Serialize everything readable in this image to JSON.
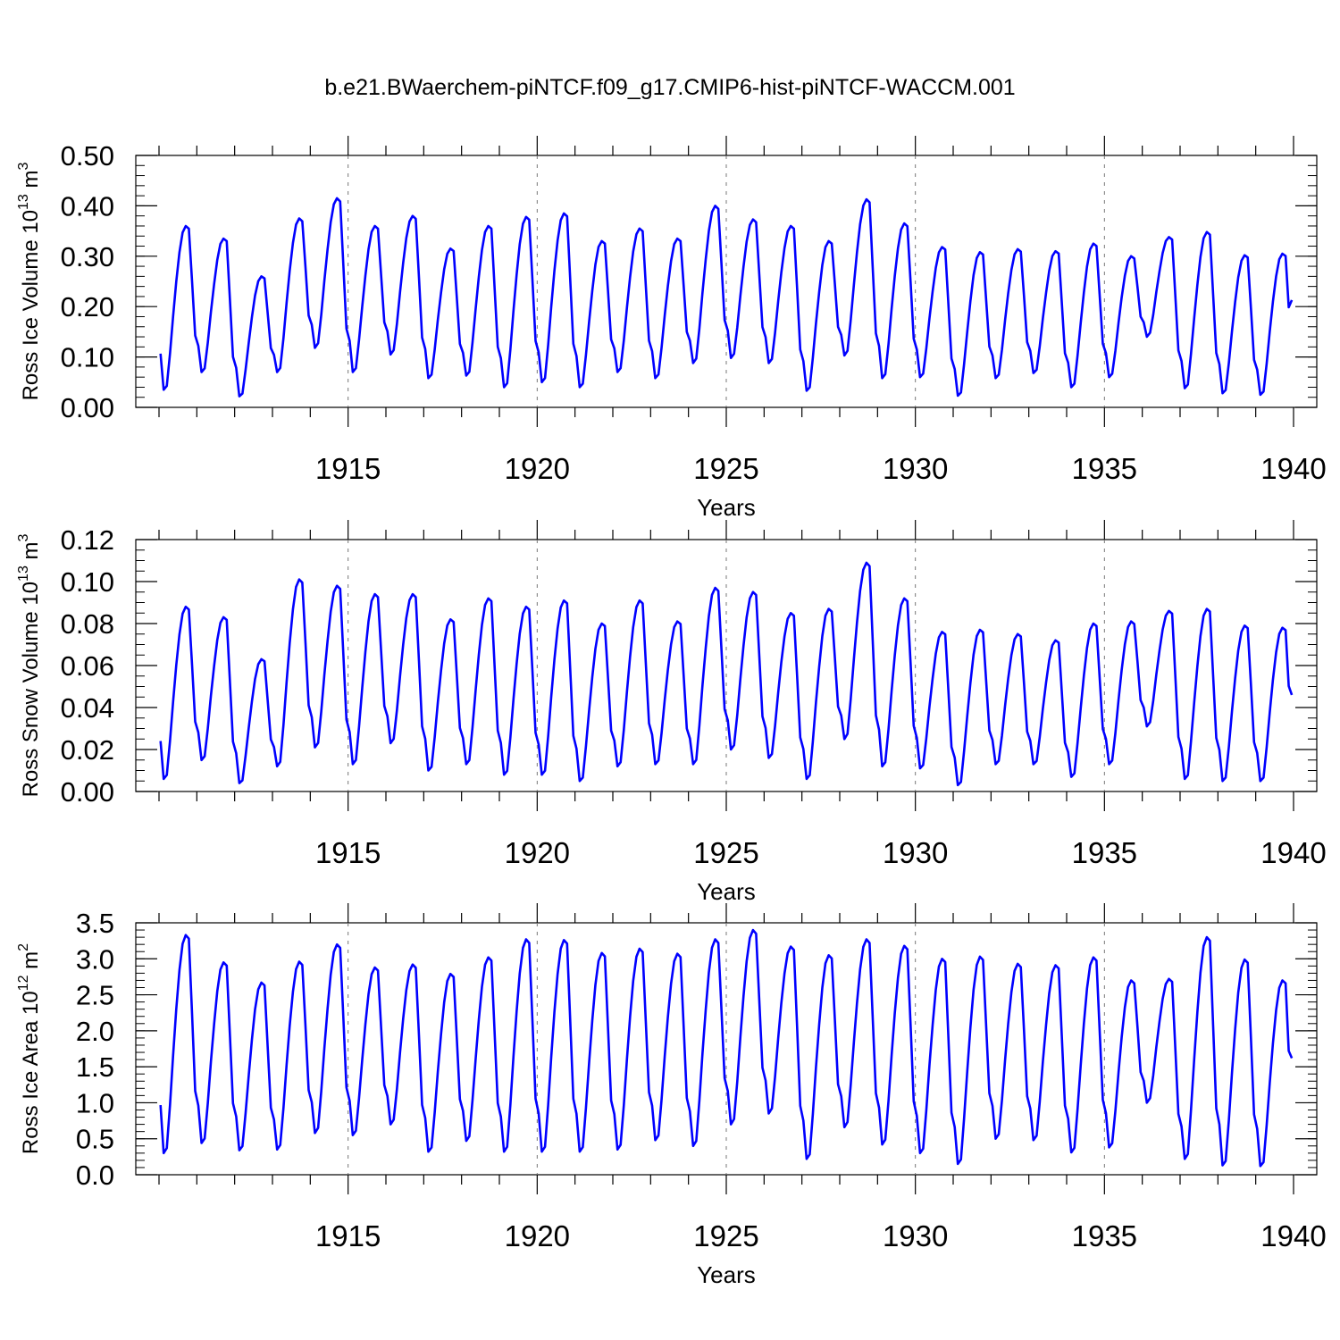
{
  "figure": {
    "title": "b.e21.BWaerchem-piNTCF.f09_g17.CMIP6-hist-piNTCF-WACCM.001"
  },
  "style": {
    "line_color": "#0000ff",
    "axis_color": "#000000",
    "grid_color": "#777777"
  },
  "chart_data": [
    {
      "type": "line",
      "name": "ross-ice-volume",
      "xlabel": "Years",
      "ylabel": "Ross Ice Volume 10",
      "ylabel_exp": "13",
      "ylabel_unit": " m",
      "ylabel_unit_exp": "3",
      "xlim": [
        1910.0,
        1940.0
      ],
      "ylim": [
        0.0,
        0.5
      ],
      "x_ticks": [
        1915,
        1920,
        1925,
        1930,
        1935,
        1940
      ],
      "y_ticks": [
        "0.00",
        "0.10",
        "0.20",
        "0.30",
        "0.40",
        "0.50"
      ],
      "y_tick_values": [
        0.0,
        0.1,
        0.2,
        0.3,
        0.4,
        0.5
      ],
      "y_minor_step": 0.02,
      "grid": "dashed vertical lines at major x ticks",
      "x_start": 1910.04,
      "x_step": 0.08333,
      "peaks": [
        0.36,
        0.335,
        0.26,
        0.375,
        0.415,
        0.36,
        0.38,
        0.315,
        0.36,
        0.378,
        0.385,
        0.33,
        0.355,
        0.335,
        0.4,
        0.373,
        0.36,
        0.33,
        0.413,
        0.365,
        0.318,
        0.308,
        0.314,
        0.31,
        0.325,
        0.3,
        0.338,
        0.348,
        0.302,
        0.305
      ],
      "troughs": [
        0.035,
        0.07,
        0.022,
        0.07,
        0.118,
        0.07,
        0.105,
        0.058,
        0.063,
        0.04,
        0.05,
        0.04,
        0.07,
        0.058,
        0.088,
        0.098,
        0.088,
        0.033,
        0.103,
        0.058,
        0.06,
        0.023,
        0.058,
        0.068,
        0.04,
        0.06,
        0.14,
        0.038,
        0.028,
        0.025
      ],
      "last_value": 0.213
    },
    {
      "type": "line",
      "name": "ross-snow-volume",
      "xlabel": "Years",
      "ylabel": "Ross Snow Volume 10",
      "ylabel_exp": "13",
      "ylabel_unit": " m",
      "ylabel_unit_exp": "3",
      "xlim": [
        1910.0,
        1940.0
      ],
      "ylim": [
        0.0,
        0.12
      ],
      "x_ticks": [
        1915,
        1920,
        1925,
        1930,
        1935,
        1940
      ],
      "y_ticks": [
        "0.00",
        "0.02",
        "0.04",
        "0.06",
        "0.08",
        "0.10",
        "0.12"
      ],
      "y_tick_values": [
        0.0,
        0.02,
        0.04,
        0.06,
        0.08,
        0.1,
        0.12
      ],
      "y_minor_step": 0.005,
      "grid": "dashed vertical lines at major x ticks",
      "x_start": 1910.04,
      "x_step": 0.08333,
      "peaks": [
        0.088,
        0.083,
        0.063,
        0.101,
        0.098,
        0.094,
        0.094,
        0.082,
        0.092,
        0.088,
        0.091,
        0.08,
        0.091,
        0.081,
        0.097,
        0.095,
        0.085,
        0.087,
        0.109,
        0.092,
        0.076,
        0.077,
        0.075,
        0.072,
        0.08,
        0.081,
        0.086,
        0.087,
        0.079,
        0.078
      ],
      "troughs": [
        0.006,
        0.015,
        0.004,
        0.012,
        0.021,
        0.013,
        0.023,
        0.01,
        0.013,
        0.008,
        0.008,
        0.005,
        0.012,
        0.013,
        0.013,
        0.02,
        0.016,
        0.006,
        0.025,
        0.012,
        0.011,
        0.003,
        0.013,
        0.013,
        0.007,
        0.013,
        0.031,
        0.006,
        0.005,
        0.005
      ],
      "last_value": 0.046
    },
    {
      "type": "line",
      "name": "ross-ice-area",
      "xlabel": "Years",
      "ylabel": "Ross Ice Area 10",
      "ylabel_exp": "12",
      "ylabel_unit": " m",
      "ylabel_unit_exp": "2",
      "xlim": [
        1910.0,
        1940.0
      ],
      "ylim": [
        0.0,
        3.5
      ],
      "x_ticks": [
        1915,
        1920,
        1925,
        1930,
        1935,
        1940
      ],
      "y_ticks": [
        "0.0",
        "0.5",
        "1.0",
        "1.5",
        "2.0",
        "2.5",
        "3.0",
        "3.5"
      ],
      "y_tick_values": [
        0.0,
        0.5,
        1.0,
        1.5,
        2.0,
        2.5,
        3.0,
        3.5
      ],
      "y_minor_step": 0.1,
      "grid": "dashed vertical lines at major x ticks",
      "x_start": 1910.04,
      "x_step": 0.08333,
      "peaks": [
        3.33,
        2.95,
        2.67,
        2.96,
        3.2,
        2.88,
        2.92,
        2.79,
        3.02,
        3.27,
        3.26,
        3.08,
        3.14,
        3.07,
        3.27,
        3.4,
        3.17,
        3.05,
        3.27,
        3.18,
        3.0,
        3.03,
        2.93,
        2.91,
        3.02,
        2.7,
        2.72,
        3.3,
        2.99,
        2.7
      ],
      "troughs": [
        0.3,
        0.44,
        0.34,
        0.35,
        0.58,
        0.55,
        0.7,
        0.32,
        0.47,
        0.32,
        0.32,
        0.32,
        0.35,
        0.48,
        0.4,
        0.7,
        0.85,
        0.22,
        0.66,
        0.42,
        0.3,
        0.15,
        0.5,
        0.48,
        0.31,
        0.38,
        1.0,
        0.22,
        0.13,
        0.12
      ],
      "last_value": 1.62
    }
  ]
}
